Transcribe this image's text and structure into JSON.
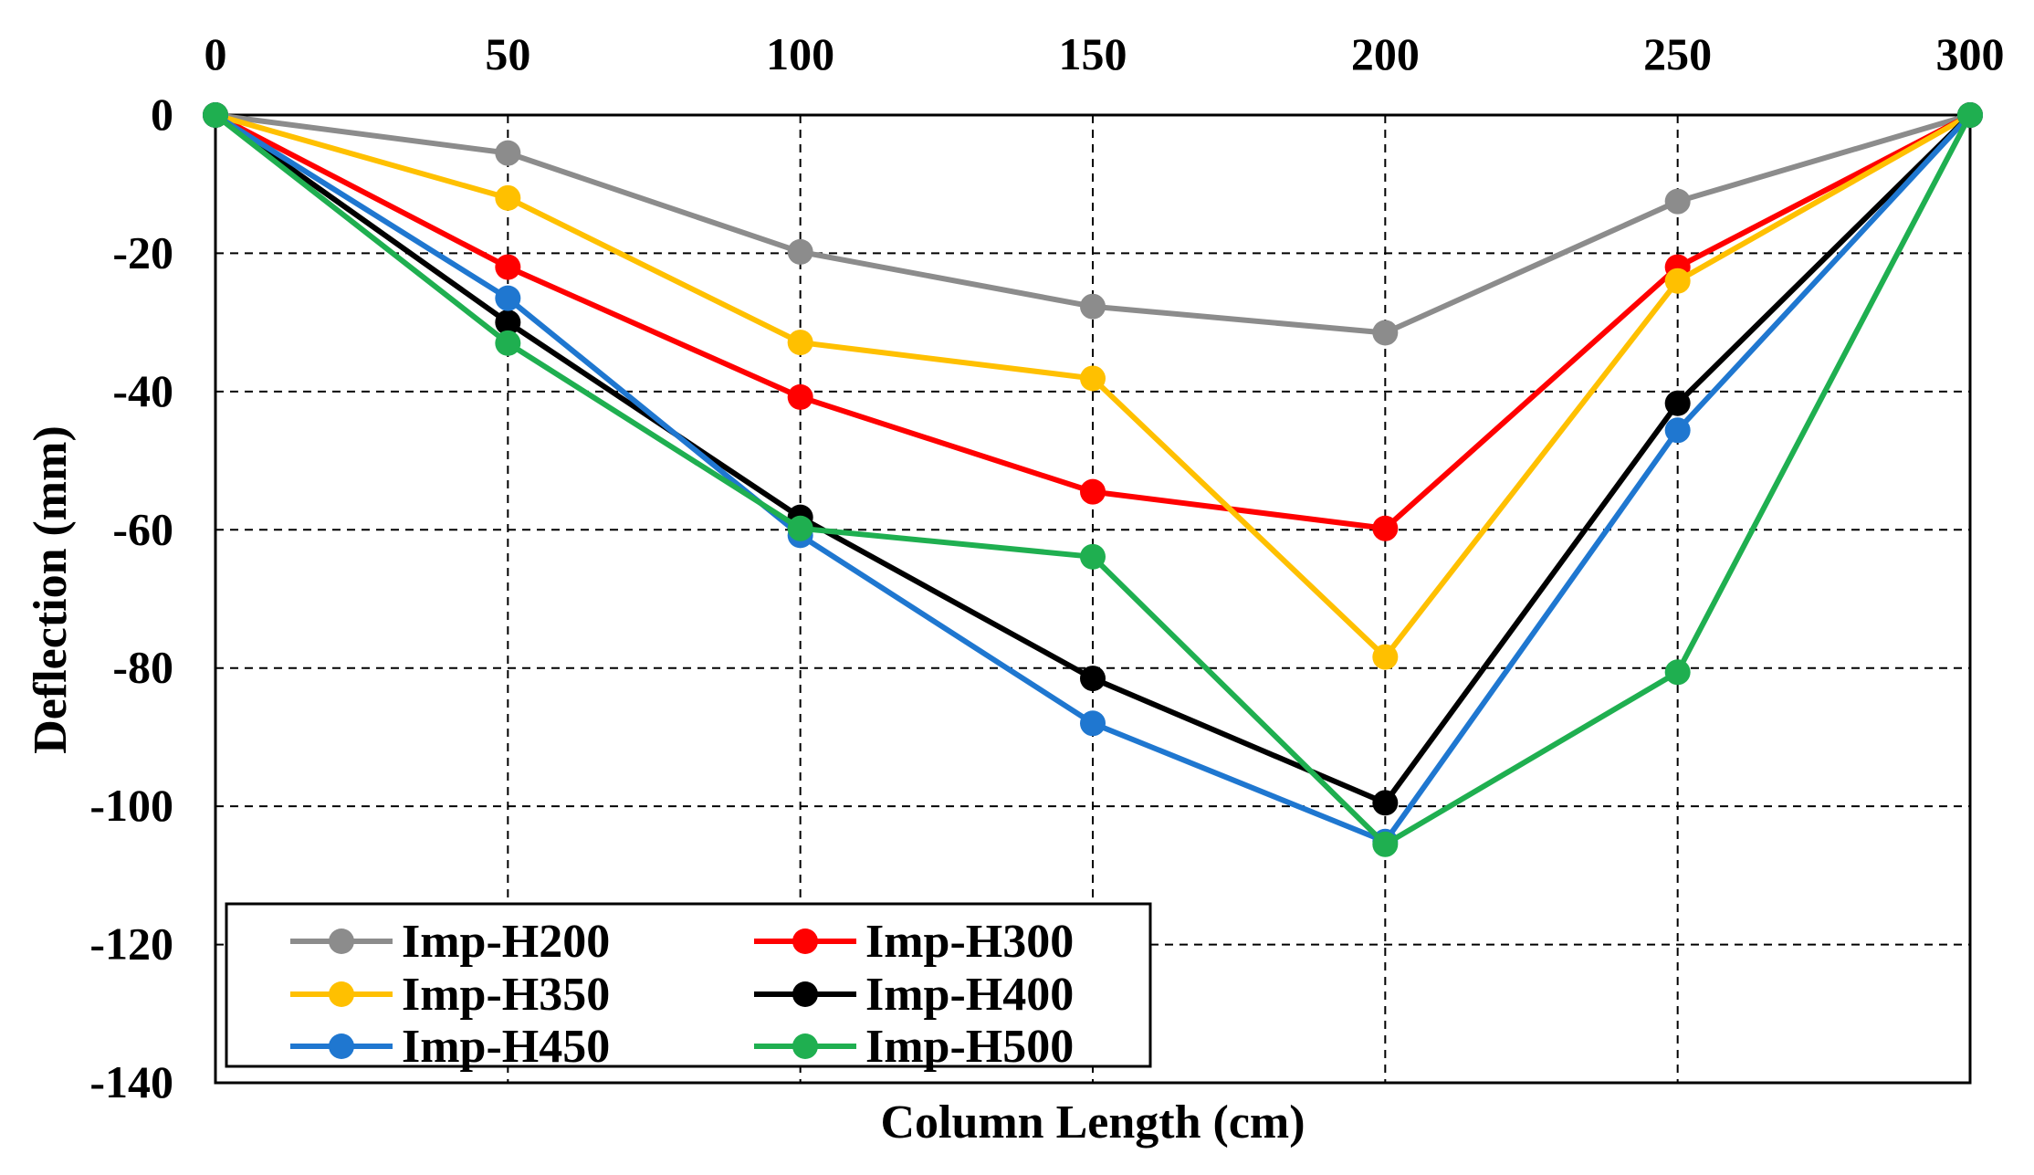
{
  "chart_data": {
    "type": "line",
    "title": "",
    "xlabel": "Column Length (cm)",
    "ylabel": "Deflection (mm)",
    "x": [
      0,
      50,
      100,
      150,
      200,
      250,
      300
    ],
    "xlim": [
      0,
      300
    ],
    "ylim": [
      -140,
      0
    ],
    "xticks": [
      "0",
      "50",
      "100",
      "150",
      "200",
      "250",
      "300"
    ],
    "yticks": [
      "0",
      "-20",
      "-40",
      "-60",
      "-80",
      "-100",
      "-120",
      "-140"
    ],
    "grid": true,
    "x_axis_position": "top",
    "legend_position": "bottom-left",
    "series": [
      {
        "name": "Imp-H200",
        "color": "#8C8C8C",
        "values": [
          0,
          -5.5,
          -19.8,
          -27.7,
          -31.5,
          -12.5,
          0
        ]
      },
      {
        "name": "Imp-H300",
        "color": "#FF0000",
        "values": [
          0,
          -22,
          -40.8,
          -54.5,
          -59.8,
          -22,
          0
        ]
      },
      {
        "name": "Imp-H350",
        "color": "#FFC000",
        "values": [
          0,
          -12,
          -32.9,
          -38.1,
          -78.4,
          -24,
          0
        ]
      },
      {
        "name": "Imp-H400",
        "color": "#000000",
        "values": [
          0,
          -30,
          -58.2,
          -81.5,
          -99.5,
          -41.7,
          0
        ]
      },
      {
        "name": "Imp-H450",
        "color": "#1F77D0",
        "values": [
          0,
          -26.5,
          -60.8,
          -88,
          -105.1,
          -45.6,
          0
        ]
      },
      {
        "name": "Imp-H500",
        "color": "#1FAF50",
        "values": [
          0,
          -33,
          -59.8,
          -63.9,
          -105.5,
          -80.6,
          0
        ]
      }
    ]
  }
}
